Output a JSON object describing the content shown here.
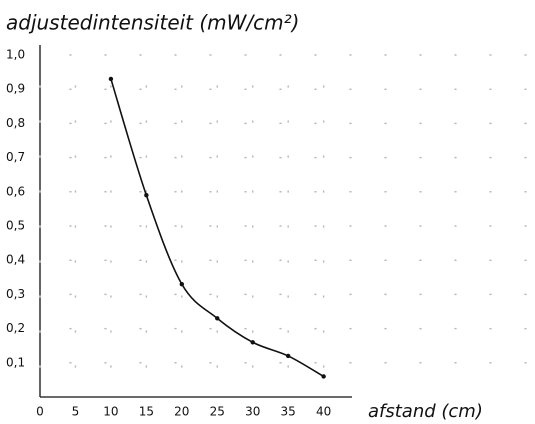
{
  "chart_data": {
    "type": "scatter",
    "title": "adjustedintensiteit (mW/cm²)",
    "x_label": "afstand (cm)",
    "x": [
      10,
      15,
      20,
      25,
      30,
      35,
      40
    ],
    "series": [
      {
        "color": "#111111",
        "values": [
          0.93,
          0.59,
          0.33,
          0.23,
          0.16,
          0.12,
          0.06
        ]
      }
    ],
    "xlim": [
      0,
      44
    ],
    "ylim": [
      0,
      1
    ],
    "xticks": [
      0,
      5,
      10,
      15,
      20,
      25,
      30,
      35,
      40
    ],
    "yticks": [
      {
        "value": 0.1,
        "label": "0,1"
      },
      {
        "value": 0.2,
        "label": "0,2"
      },
      {
        "value": 0.3,
        "label": "0,3"
      },
      {
        "value": 0.4,
        "label": "0,4"
      },
      {
        "value": 0.5,
        "label": "0,5"
      },
      {
        "value": 0.6,
        "label": "0,6"
      },
      {
        "value": 0.7,
        "label": "0,7"
      },
      {
        "value": 0.8,
        "label": "0,8"
      },
      {
        "value": 0.9,
        "label": "0,9"
      },
      {
        "value": 1,
        "label": "1,0"
      }
    ],
    "grid": true
  }
}
